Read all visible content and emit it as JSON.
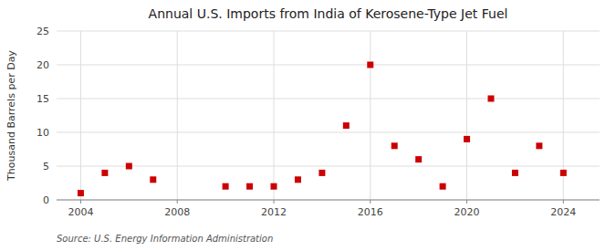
{
  "chart_data": {
    "type": "scatter",
    "title": "Annual U.S. Imports from India of Kerosene-Type Jet Fuel",
    "y_label": "Thousand Barrels per Day",
    "annotation": "Source: U.S. Energy Information Administration",
    "x": [
      2004,
      2005,
      2006,
      2007,
      2010,
      2011,
      2012,
      2013,
      2014,
      2015,
      2016,
      2017,
      2018,
      2019,
      2020,
      2021,
      2022,
      2023,
      2024
    ],
    "values": [
      1,
      4,
      5,
      3,
      2,
      2,
      2,
      3,
      4,
      11,
      20,
      8,
      6,
      2,
      9,
      15,
      4,
      8,
      4
    ],
    "xlim": [
      2003,
      2025.5
    ],
    "ylim": [
      0,
      25
    ],
    "xticks": [
      2004,
      2008,
      2012,
      2016,
      2020,
      2024
    ],
    "yticks": [
      0,
      5,
      10,
      15,
      20,
      25
    ],
    "color": "#cc0000",
    "marker": "square",
    "grid": true
  }
}
